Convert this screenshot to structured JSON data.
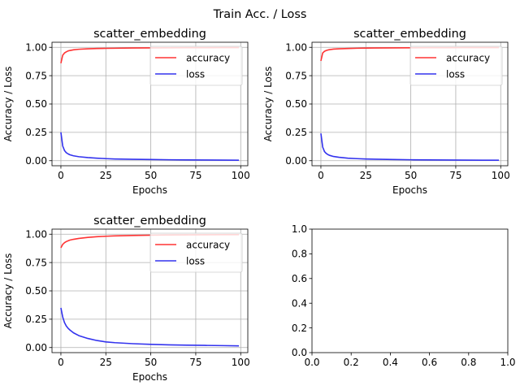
{
  "suptitle": "Train Acc. / Loss",
  "colors": {
    "accuracy": "#ff3333",
    "loss": "#3333ee",
    "grid": "#b0b0b0",
    "axis": "#000000"
  },
  "chart_data": [
    {
      "type": "line",
      "title": "scatter_embedding",
      "xlabel": "Epochs",
      "ylabel": "Accuracy / Loss",
      "xlim": [
        -4.95,
        103.95
      ],
      "ylim": [
        -0.0448,
        1.0448
      ],
      "xticks": [
        0,
        25,
        50,
        75,
        100
      ],
      "yticks": [
        0.0,
        0.25,
        0.5,
        0.75,
        1.0
      ],
      "xtick_labels": [
        "0",
        "25",
        "50",
        "75",
        "100"
      ],
      "ytick_labels": [
        "0.00",
        "0.25",
        "0.50",
        "0.75",
        "1.00"
      ],
      "grid": true,
      "legend_position": "upper-right",
      "x": [
        0,
        1,
        2,
        3,
        4,
        5,
        7,
        10,
        15,
        20,
        25,
        30,
        40,
        50,
        60,
        70,
        80,
        90,
        99
      ],
      "series": [
        {
          "name": "accuracy",
          "color": "#ff3333",
          "values": [
            0.86,
            0.93,
            0.95,
            0.96,
            0.968,
            0.972,
            0.978,
            0.983,
            0.987,
            0.99,
            0.991,
            0.992,
            0.994,
            0.995,
            0.996,
            0.997,
            0.997,
            0.998,
            0.998
          ]
        },
        {
          "name": "loss",
          "color": "#3333ee",
          "values": [
            0.25,
            0.13,
            0.09,
            0.07,
            0.06,
            0.052,
            0.043,
            0.035,
            0.027,
            0.022,
            0.018,
            0.015,
            0.012,
            0.01,
            0.008,
            0.007,
            0.006,
            0.005,
            0.004
          ]
        }
      ]
    },
    {
      "type": "line",
      "title": "scatter_embedding",
      "xlabel": "Epochs",
      "ylabel": "Accuracy / Loss",
      "xlim": [
        -4.95,
        103.95
      ],
      "ylim": [
        -0.0448,
        1.0448
      ],
      "xticks": [
        0,
        25,
        50,
        75,
        100
      ],
      "yticks": [
        0.0,
        0.25,
        0.5,
        0.75,
        1.0
      ],
      "xtick_labels": [
        "0",
        "25",
        "50",
        "75",
        "100"
      ],
      "ytick_labels": [
        "0.00",
        "0.25",
        "0.50",
        "0.75",
        "1.00"
      ],
      "grid": true,
      "legend_position": "upper-right",
      "x": [
        0,
        1,
        2,
        3,
        4,
        5,
        7,
        10,
        15,
        20,
        25,
        30,
        40,
        50,
        60,
        70,
        80,
        90,
        99
      ],
      "series": [
        {
          "name": "accuracy",
          "color": "#ff3333",
          "values": [
            0.88,
            0.95,
            0.965,
            0.972,
            0.977,
            0.98,
            0.984,
            0.987,
            0.99,
            0.992,
            0.993,
            0.994,
            0.995,
            0.996,
            0.997,
            0.997,
            0.998,
            0.998,
            0.998
          ]
        },
        {
          "name": "loss",
          "color": "#3333ee",
          "values": [
            0.24,
            0.12,
            0.08,
            0.063,
            0.053,
            0.046,
            0.037,
            0.03,
            0.022,
            0.018,
            0.015,
            0.013,
            0.01,
            0.008,
            0.007,
            0.006,
            0.005,
            0.004,
            0.004
          ]
        }
      ]
    },
    {
      "type": "line",
      "title": "scatter_embedding",
      "xlabel": "Epochs",
      "ylabel": "Accuracy / Loss",
      "xlim": [
        -4.95,
        103.95
      ],
      "ylim": [
        -0.0448,
        1.0448
      ],
      "xticks": [
        0,
        25,
        50,
        75,
        100
      ],
      "yticks": [
        0.0,
        0.25,
        0.5,
        0.75,
        1.0
      ],
      "xtick_labels": [
        "0",
        "25",
        "50",
        "75",
        "100"
      ],
      "ytick_labels": [
        "0.00",
        "0.25",
        "0.50",
        "0.75",
        "1.00"
      ],
      "grid": true,
      "legend_position": "upper-right",
      "x": [
        0,
        1,
        2,
        3,
        4,
        5,
        7,
        10,
        15,
        20,
        25,
        30,
        40,
        50,
        60,
        70,
        80,
        90,
        99
      ],
      "series": [
        {
          "name": "accuracy",
          "color": "#ff3333",
          "values": [
            0.88,
            0.91,
            0.925,
            0.935,
            0.942,
            0.948,
            0.955,
            0.963,
            0.972,
            0.978,
            0.982,
            0.985,
            0.989,
            0.991,
            0.993,
            0.994,
            0.995,
            0.996,
            0.996
          ]
        },
        {
          "name": "loss",
          "color": "#3333ee",
          "values": [
            0.35,
            0.27,
            0.22,
            0.19,
            0.17,
            0.155,
            0.13,
            0.105,
            0.08,
            0.062,
            0.05,
            0.043,
            0.034,
            0.028,
            0.024,
            0.021,
            0.019,
            0.017,
            0.015
          ]
        }
      ]
    },
    {
      "type": "line",
      "title": "",
      "xlabel": "",
      "ylabel": "",
      "xlim": [
        0,
        1
      ],
      "ylim": [
        0,
        1
      ],
      "xticks": [
        0,
        0.2,
        0.4,
        0.6,
        0.8,
        1.0
      ],
      "yticks": [
        0,
        0.2,
        0.4,
        0.6,
        0.8,
        1.0
      ],
      "xtick_labels": [
        "0.0",
        "0.2",
        "0.4",
        "0.6",
        "0.8",
        "1.0"
      ],
      "ytick_labels": [
        "0.0",
        "0.2",
        "0.4",
        "0.6",
        "0.8",
        "1.0"
      ],
      "grid": false,
      "legend_position": "",
      "x": [],
      "series": []
    }
  ]
}
